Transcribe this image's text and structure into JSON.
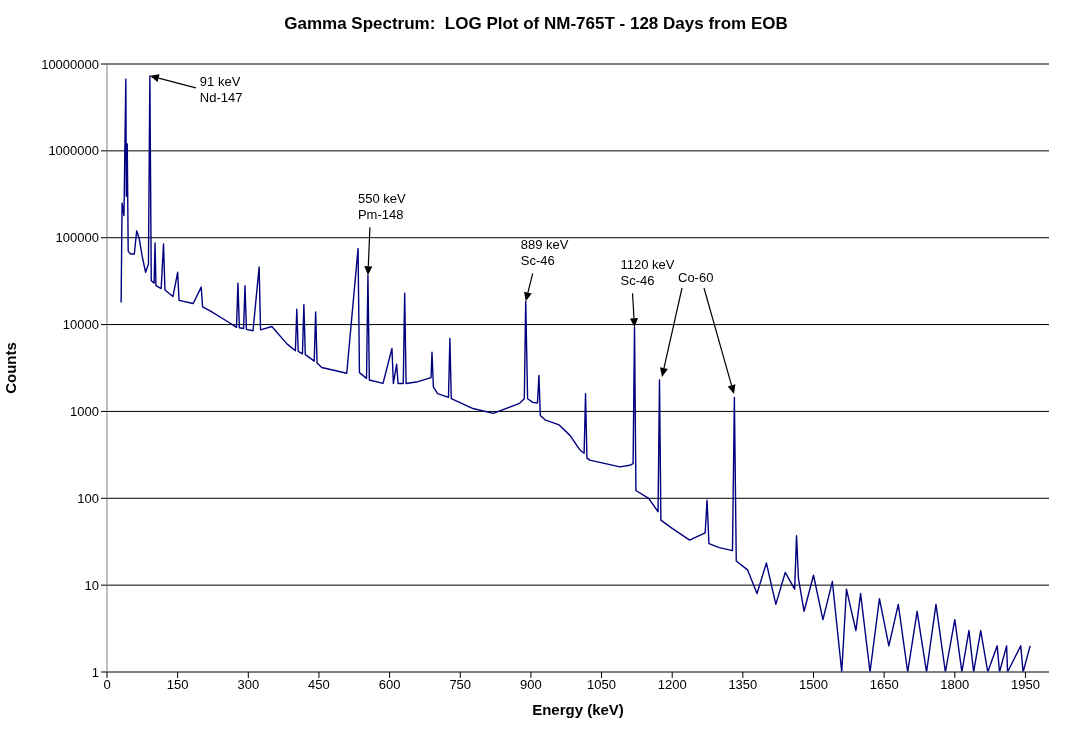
{
  "chart_data": {
    "type": "line",
    "title": "Gamma Spectrum:  LOG Plot of NM-765T - 128 Days from EOB",
    "xlabel": "Energy (keV)",
    "ylabel": "Counts",
    "log": "y",
    "grid": "y",
    "legend": false,
    "marker": "none",
    "line_style": "solid",
    "xlim": [
      0,
      2000
    ],
    "xticks": [
      0,
      150,
      300,
      450,
      600,
      750,
      900,
      1050,
      1200,
      1350,
      1500,
      1650,
      1800,
      1950
    ],
    "ylim": [
      1,
      10000000
    ],
    "yticks": [
      1,
      10,
      100,
      1000,
      10000,
      100000,
      1000000,
      10000000
    ],
    "annotations": [
      {
        "text": "91 keV\nNd-147",
        "x": 91,
        "y": 7300000
      },
      {
        "text": "550 keV\nPm-148",
        "x": 554,
        "y": 37000
      },
      {
        "text": "889 keV\nSc-46",
        "x": 889,
        "y": 18500
      },
      {
        "text": "1120 keV\nSc-46",
        "x": 1120,
        "y": 9300
      },
      "Co-60"
    ],
    "series": [
      {
        "color": "#000080",
        "x": [
          30,
          32,
          36,
          40,
          41,
          43,
          45,
          50,
          58,
          63,
          68,
          75,
          82,
          88,
          91,
          94,
          100,
          102,
          104,
          115,
          120,
          123,
          140,
          150,
          153,
          183,
          200,
          203,
          218,
          254,
          275,
          278,
          281,
          290,
          293,
          296,
          310,
          323,
          326,
          350,
          382,
          400,
          403,
          406,
          415,
          418,
          421,
          440,
          443,
          446,
          456,
          509,
          533,
          536,
          551,
          554,
          557,
          586,
          605,
          608,
          615,
          618,
          629,
          632,
          635,
          660,
          688,
          690,
          693,
          702,
          725,
          728,
          731,
          777,
          820,
          876,
          886,
          889,
          893,
          904,
          914,
          917,
          920,
          930,
          960,
          983,
          1004,
          1013,
          1016,
          1019,
          1025,
          1089,
          1110,
          1117,
          1120,
          1123,
          1150,
          1170,
          1173,
          1176,
          1200,
          1237,
          1270,
          1274,
          1278,
          1300,
          1328,
          1332,
          1336,
          1360,
          1380,
          1400,
          1420,
          1440,
          1460,
          1464,
          1468,
          1480,
          1500,
          1520,
          1540,
          1560,
          1570,
          1590,
          1600,
          1620,
          1640,
          1660,
          1680,
          1700,
          1720,
          1740,
          1760,
          1780,
          1800,
          1815,
          1830,
          1840,
          1855,
          1870,
          1890,
          1895,
          1910,
          1912,
          1940,
          1945,
          1960
        ],
        "values": [
          18000,
          250000,
          180000,
          6700000,
          300000,
          1200000,
          70000,
          65000,
          65000,
          120000,
          100000,
          60000,
          40000,
          50000,
          7300000,
          32000,
          30000,
          87000,
          28000,
          26000,
          85000,
          25000,
          21000,
          40000,
          19000,
          17500,
          27000,
          16000,
          14500,
          11000,
          9300,
          30000,
          9200,
          9000,
          28000,
          8800,
          8500,
          46000,
          8700,
          9500,
          6000,
          5000,
          15000,
          4900,
          4600,
          17000,
          4500,
          3800,
          14000,
          3600,
          3200,
          2750,
          75000,
          2800,
          2400,
          37000,
          2300,
          2100,
          5300,
          2100,
          3500,
          2100,
          2100,
          23000,
          2100,
          2200,
          2450,
          4800,
          1900,
          1600,
          1450,
          6900,
          1400,
          1080,
          950,
          1240,
          1400,
          18500,
          1400,
          1270,
          1250,
          2600,
          900,
          800,
          700,
          530,
          360,
          330,
          1600,
          290,
          275,
          230,
          240,
          250,
          9300,
          123,
          100,
          70,
          2300,
          56,
          45,
          33,
          40,
          95,
          30,
          27,
          25,
          1450,
          19,
          15,
          8,
          18,
          6,
          14,
          9,
          37,
          12,
          5,
          13,
          4,
          11,
          1,
          9,
          3,
          8,
          1,
          7,
          2,
          6,
          1,
          5,
          1,
          6,
          1,
          4,
          1,
          3,
          1,
          3,
          1,
          2,
          1,
          2,
          1,
          2,
          1,
          2
        ]
      }
    ]
  }
}
